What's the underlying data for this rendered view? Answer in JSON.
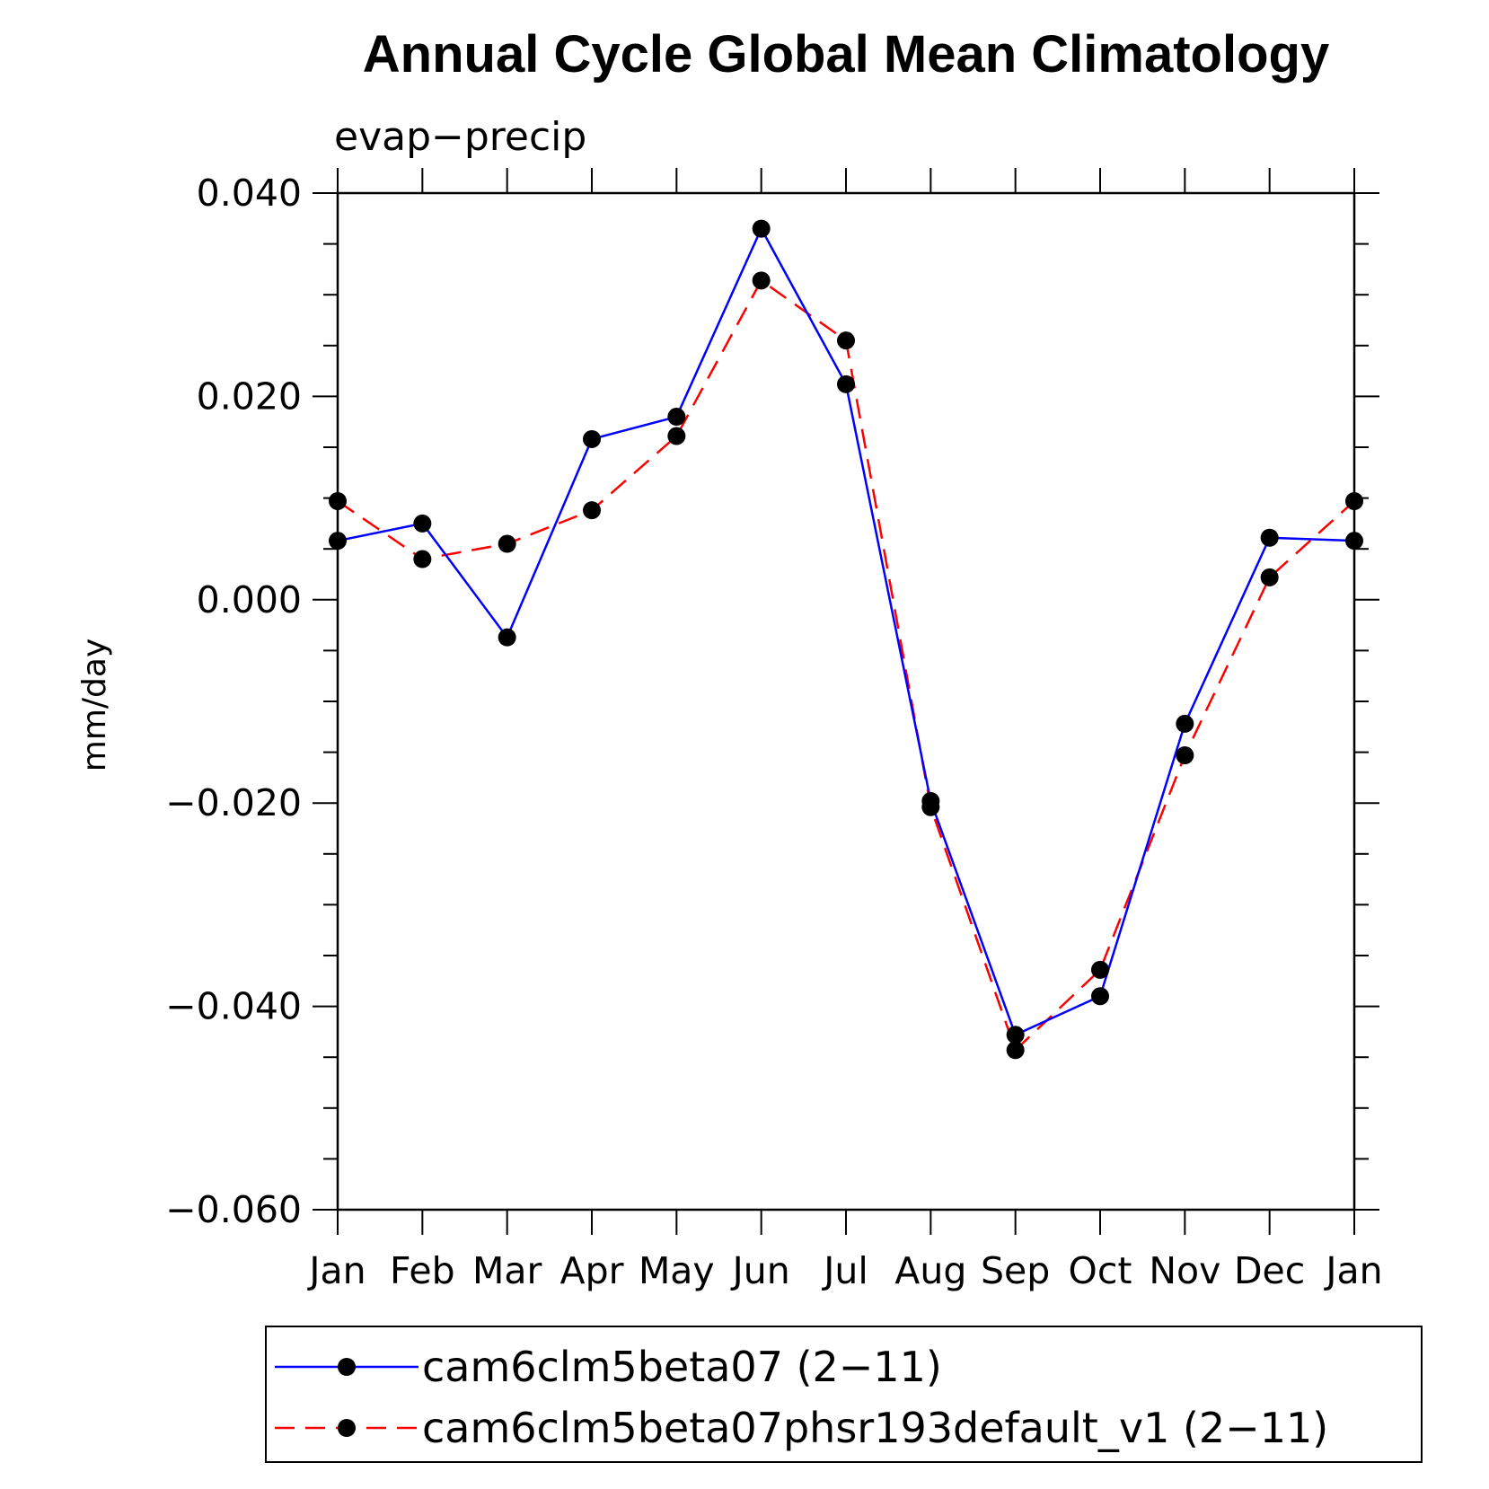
{
  "chart_data": {
    "type": "line",
    "title": "Annual Cycle Global Mean Climatology",
    "subtitle": "evap−precip",
    "xlabel": "",
    "ylabel": "mm/day",
    "categories": [
      "Jan",
      "Feb",
      "Mar",
      "Apr",
      "May",
      "Jun",
      "Jul",
      "Aug",
      "Sep",
      "Oct",
      "Nov",
      "Dec",
      "Jan"
    ],
    "ylim": [
      -0.06,
      0.04
    ],
    "yticks": [
      0.04,
      0.02,
      0.0,
      -0.02,
      -0.04,
      -0.06
    ],
    "ytick_labels": [
      "0.040",
      "0.020",
      "0.000",
      "−0.020",
      "−0.040",
      "−0.060"
    ],
    "grid": false,
    "legend_position": "bottom",
    "series": [
      {
        "name": "cam6clm5beta07 (2−11)",
        "color": "#0000ff",
        "dash": "solid",
        "values": [
          0.0058,
          0.0075,
          -0.0037,
          0.0158,
          0.018,
          0.0365,
          0.0212,
          -0.0198,
          -0.0428,
          -0.039,
          -0.0122,
          0.0061,
          0.0058
        ]
      },
      {
        "name": "cam6clm5beta07phsr193default_v1 (2−11)",
        "color": "#ff0000",
        "dash": "dashed",
        "values": [
          0.0097,
          0.004,
          0.0055,
          0.0088,
          0.0161,
          0.0314,
          0.0255,
          -0.0204,
          -0.0443,
          -0.0364,
          -0.0153,
          0.0022,
          0.0097
        ]
      }
    ]
  }
}
